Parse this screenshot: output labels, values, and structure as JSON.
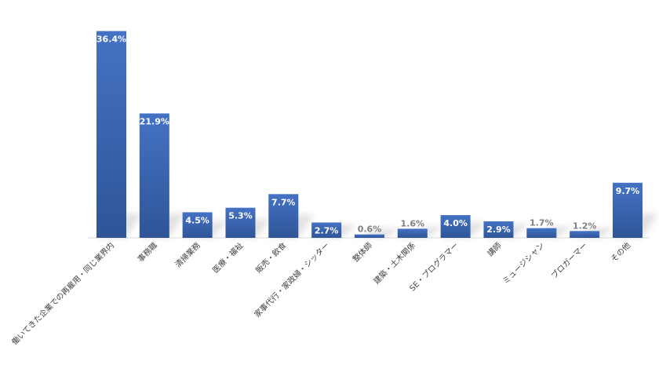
{
  "chart_data": {
    "type": "bar",
    "title": "",
    "xlabel": "",
    "ylabel": "",
    "ylim": [
      0,
      38
    ],
    "grid": false,
    "legend": "none",
    "bar_color": "#4472c4",
    "bar_color_dark": "#2f5597",
    "label_color_inside": "#ffffff",
    "label_color_outside": "#7f7f7f",
    "categories": [
      "働いてきた企業での再雇用・同じ業界内",
      "事務職",
      "清掃業務",
      "医療・福祉",
      "販売・飲食",
      "家事代行・家政婦・シッター",
      "整体師",
      "建築・土木関係",
      "SE・プログラマー",
      "講師",
      "ミュージシャン",
      "ブロガーマー",
      "その他"
    ],
    "values": [
      36.4,
      21.9,
      4.5,
      5.3,
      7.7,
      2.7,
      0.6,
      1.6,
      4.0,
      2.9,
      1.7,
      1.2,
      9.7
    ],
    "value_labels": [
      "36.4%",
      "21.9%",
      "4.5%",
      "5.3%",
      "7.7%",
      "2.7%",
      "0.6%",
      "1.6%",
      "4.0%",
      "2.9%",
      "1.7%",
      "1.2%",
      "9.7%"
    ]
  }
}
